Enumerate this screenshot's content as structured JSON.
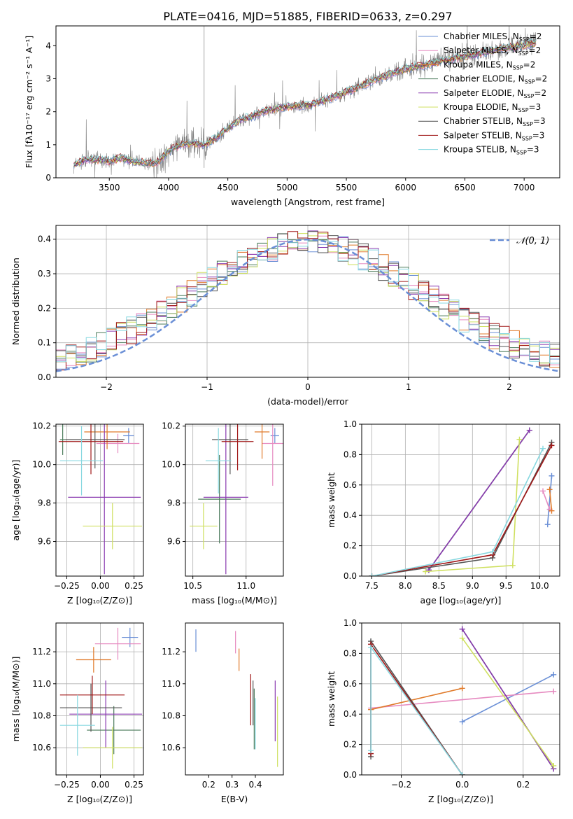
{
  "page_title": "PLATE=0416, MJD=51885, FIBERID=0633, z=0.297",
  "colors": {
    "chabrier_miles": "#6a8fd6",
    "salpeter_miles": "#e68ac0",
    "kroupa_miles": "#e07a2a",
    "chabrier_elodie": "#4a7a5a",
    "salpeter_elodie": "#8a3ab0",
    "kroupa_elodie": "#cfe060",
    "chabrier_stelib": "#555555",
    "salpeter_stelib": "#a01818",
    "kroupa_stelib": "#88d8e0",
    "data_gray": "#808080",
    "normal_curve": "#6a8fd6"
  },
  "chart_data": [
    {
      "id": "spectrum",
      "type": "line",
      "title": "",
      "xlabel": "wavelength [Angstrom, rest frame]",
      "ylabel": "Flux [fλ10⁻¹⁷ erg cm⁻² s⁻¹ A⁻¹]",
      "xlim": [
        3050,
        7300
      ],
      "ylim": [
        0,
        4.6
      ],
      "xticks": [
        3500,
        4000,
        4500,
        5000,
        5500,
        6000,
        6500,
        7000
      ],
      "yticks": [
        0,
        1,
        2,
        3,
        4
      ],
      "grid": false,
      "legend_position": "top-right",
      "legend": [
        {
          "label": "Chabrier MILES, N",
          "sub": "SSP",
          "suffix": "=2",
          "color": "#6a8fd6"
        },
        {
          "label": "Salpeter MILES, N",
          "sub": "SSP",
          "suffix": "=2",
          "color": "#e68ac0"
        },
        {
          "label": "Kroupa MILES, N",
          "sub": "SSP",
          "suffix": "=2",
          "color": "#e07a2a"
        },
        {
          "label": "Chabrier ELODIE, N",
          "sub": "SSP",
          "suffix": "=2",
          "color": "#4a7a5a"
        },
        {
          "label": "Salpeter ELODIE, N",
          "sub": "SSP",
          "suffix": "=2",
          "color": "#8a3ab0"
        },
        {
          "label": "Kroupa ELODIE, N",
          "sub": "SSP",
          "suffix": "=3",
          "color": "#cfe060"
        },
        {
          "label": "Chabrier STELIB, N",
          "sub": "SSP",
          "suffix": "=3",
          "color": "#555555"
        },
        {
          "label": "Salpeter STELIB, N",
          "sub": "SSP",
          "suffix": "=3",
          "color": "#a01818"
        },
        {
          "label": "Kroupa STELIB, N",
          "sub": "SSP",
          "suffix": "=3",
          "color": "#88d8e0"
        }
      ],
      "continuum": {
        "x": [
          3200,
          3300,
          3400,
          3500,
          3600,
          3700,
          3800,
          3900,
          4000,
          4100,
          4200,
          4300,
          4400,
          4500,
          4600,
          4700,
          4800,
          4900,
          5000,
          5200,
          5400,
          5600,
          5800,
          6000,
          6200,
          6400,
          6600,
          6800,
          7000,
          7100
        ],
        "y": [
          0.4,
          0.55,
          0.55,
          0.5,
          0.6,
          0.5,
          0.45,
          0.45,
          0.8,
          1.0,
          1.05,
          1.0,
          1.2,
          1.5,
          1.75,
          1.85,
          2.0,
          2.1,
          2.15,
          2.2,
          2.45,
          2.75,
          3.05,
          3.3,
          3.45,
          3.6,
          3.75,
          3.9,
          4.0,
          4.1
        ]
      }
    },
    {
      "id": "residuals",
      "type": "line",
      "xlabel": "(data-model)/error",
      "ylabel": "Normed distribution",
      "xlim": [
        -2.5,
        2.5
      ],
      "ylim": [
        0,
        0.44
      ],
      "xticks": [
        -2,
        -1,
        0,
        1,
        2
      ],
      "yticks": [
        0.0,
        0.1,
        0.2,
        0.3,
        0.4
      ],
      "grid": true,
      "legend_position": "top-right",
      "legend": [
        {
          "label": "𝒩(0, 1)",
          "color": "#6a8fd6"
        }
      ],
      "curve": {
        "type": "normal",
        "mean": 0,
        "sigma": 1
      }
    },
    {
      "id": "age_vs_Z",
      "type": "scatter",
      "xlabel": "Z [log₁₀(Z/Z⊙)]",
      "ylabel": "age  [log₁₀(age/yr)]",
      "xlim": [
        -0.33,
        0.32
      ],
      "ylim": [
        9.42,
        10.21
      ],
      "xticks": [
        -0.25,
        0.0,
        0.25
      ],
      "yticks": [
        9.6,
        9.8,
        10.0,
        10.2
      ],
      "grid": true,
      "points": [
        {
          "x": 0.21,
          "xerr": 0.04,
          "y": 10.15,
          "yerr": 0.04,
          "color": "#6a8fd6"
        },
        {
          "x": 0.13,
          "xerr": 0.16,
          "y": 10.11,
          "yerr": 0.05,
          "color": "#e68ac0"
        },
        {
          "x": 0.05,
          "xerr": 0.17,
          "y": 10.17,
          "yerr": 0.09,
          "color": "#e07a2a"
        },
        {
          "x": -0.28,
          "xerr": 0.02,
          "y": 10.13,
          "yerr": 0.08,
          "color": "#4a7a5a"
        },
        {
          "x": 0.03,
          "xerr": 0.27,
          "y": 9.83,
          "yerr": 0.4,
          "color": "#8a3ab0"
        },
        {
          "x": 0.09,
          "xerr": 0.22,
          "y": 9.68,
          "yerr": 0.12,
          "color": "#cfe060"
        },
        {
          "x": -0.04,
          "xerr": 0.22,
          "y": 10.13,
          "yerr": 0.15,
          "color": "#555555"
        },
        {
          "x": -0.07,
          "xerr": 0.24,
          "y": 10.12,
          "yerr": 0.17,
          "color": "#a01818"
        },
        {
          "x": -0.14,
          "xerr": 0.16,
          "y": 10.02,
          "yerr": 0.18,
          "color": "#88d8e0"
        }
      ]
    },
    {
      "id": "age_vs_mass",
      "type": "scatter",
      "xlabel": "mass [log₁₀(M/M⊙)]",
      "ylabel": "",
      "xlim": [
        10.43,
        11.35
      ],
      "ylim": [
        9.42,
        10.21
      ],
      "xticks": [
        10.5,
        11.0
      ],
      "yticks": [
        9.6,
        9.8,
        10.0,
        10.2
      ],
      "grid": true,
      "points": [
        {
          "x": 11.27,
          "xerr": 0.04,
          "y": 10.15,
          "yerr": 0.04,
          "color": "#6a8fd6"
        },
        {
          "x": 11.25,
          "xerr": 0.1,
          "y": 10.11,
          "yerr": 0.22,
          "color": "#e68ac0"
        },
        {
          "x": 11.15,
          "xerr": 0.07,
          "y": 10.17,
          "yerr": 0.14,
          "color": "#e07a2a"
        },
        {
          "x": 10.75,
          "xerr": 0.2,
          "y": 9.82,
          "yerr": 0.23,
          "color": "#4a7a5a"
        },
        {
          "x": 10.81,
          "xerr": 0.21,
          "y": 9.83,
          "yerr": 0.4,
          "color": "#8a3ab0"
        },
        {
          "x": 10.6,
          "xerr": 0.13,
          "y": 9.68,
          "yerr": 0.12,
          "color": "#cfe060"
        },
        {
          "x": 10.85,
          "xerr": 0.17,
          "y": 10.13,
          "yerr": 0.18,
          "color": "#555555"
        },
        {
          "x": 10.92,
          "xerr": 0.15,
          "y": 10.12,
          "yerr": 0.15,
          "color": "#a01818"
        },
        {
          "x": 10.74,
          "xerr": 0.12,
          "y": 10.02,
          "yerr": 0.17,
          "color": "#88d8e0"
        }
      ]
    },
    {
      "id": "weight_vs_age",
      "type": "line",
      "xlabel": "age  [log₁₀(age/yr)]",
      "ylabel": "mass weight",
      "xlim": [
        7.35,
        10.3
      ],
      "ylim": [
        0,
        1.0
      ],
      "xticks": [
        7.5,
        8.0,
        8.5,
        9.0,
        9.5,
        10.0
      ],
      "yticks": [
        0.0,
        0.2,
        0.4,
        0.6,
        0.8,
        1.0
      ],
      "grid": true,
      "series": [
        {
          "color": "#6a8fd6",
          "x": [
            10.12,
            10.18
          ],
          "y": [
            0.34,
            0.66
          ]
        },
        {
          "color": "#e68ac0",
          "x": [
            10.05,
            10.15
          ],
          "y": [
            0.56,
            0.44
          ]
        },
        {
          "color": "#e07a2a",
          "x": [
            10.15,
            10.18
          ],
          "y": [
            0.57,
            0.43
          ]
        },
        {
          "color": "#4a7a5a",
          "x": [
            8.35,
            9.85
          ],
          "y": [
            0.04,
            0.96
          ]
        },
        {
          "color": "#8a3ab0",
          "x": [
            8.35,
            9.85
          ],
          "y": [
            0.04,
            0.96
          ]
        },
        {
          "color": "#cfe060",
          "x": [
            8.3,
            9.6,
            9.7
          ],
          "y": [
            0.03,
            0.07,
            0.9
          ]
        },
        {
          "color": "#555555",
          "x": [
            7.5,
            9.3,
            10.18
          ],
          "y": [
            0.0,
            0.12,
            0.88
          ]
        },
        {
          "color": "#a01818",
          "x": [
            7.5,
            9.3,
            10.18
          ],
          "y": [
            0.0,
            0.14,
            0.86
          ]
        },
        {
          "color": "#88d8e0",
          "x": [
            7.5,
            9.3,
            10.05
          ],
          "y": [
            0.0,
            0.16,
            0.84
          ]
        }
      ]
    },
    {
      "id": "mass_vs_Z",
      "type": "scatter",
      "xlabel": "Z [log₁₀(Z/Z⊙)]",
      "ylabel": "mass [log₁₀(M/M⊙)]",
      "xlim": [
        -0.33,
        0.32
      ],
      "ylim": [
        10.43,
        11.38
      ],
      "xticks": [
        -0.25,
        0.0,
        0.25
      ],
      "yticks": [
        10.6,
        10.8,
        11.0,
        11.2
      ],
      "grid": true,
      "points": [
        {
          "x": 0.22,
          "xerr": 0.06,
          "y": 11.29,
          "yerr": 0.06,
          "color": "#6a8fd6"
        },
        {
          "x": 0.13,
          "xerr": 0.17,
          "y": 11.25,
          "yerr": 0.1,
          "color": "#e68ac0"
        },
        {
          "x": -0.05,
          "xerr": 0.13,
          "y": 11.15,
          "yerr": 0.08,
          "color": "#e07a2a"
        },
        {
          "x": 0.1,
          "xerr": 0.2,
          "y": 10.71,
          "yerr": 0.15,
          "color": "#4a7a5a"
        },
        {
          "x": 0.04,
          "xerr": 0.27,
          "y": 10.81,
          "yerr": 0.21,
          "color": "#8a3ab0"
        },
        {
          "x": 0.09,
          "xerr": 0.22,
          "y": 10.6,
          "yerr": 0.13,
          "color": "#cfe060"
        },
        {
          "x": -0.07,
          "xerr": 0.23,
          "y": 10.85,
          "yerr": 0.15,
          "color": "#555555"
        },
        {
          "x": -0.06,
          "xerr": 0.24,
          "y": 10.93,
          "yerr": 0.12,
          "color": "#a01818"
        },
        {
          "x": -0.17,
          "xerr": 0.13,
          "y": 10.74,
          "yerr": 0.19,
          "color": "#88d8e0"
        }
      ]
    },
    {
      "id": "mass_vs_ebv",
      "type": "scatter",
      "xlabel": "E(B-V)",
      "ylabel": "",
      "xlim": [
        0.1,
        0.52
      ],
      "ylim": [
        10.43,
        11.38
      ],
      "xticks": [
        0.2,
        0.3,
        0.4
      ],
      "yticks": [
        10.6,
        10.8,
        11.0,
        11.2
      ],
      "grid": false,
      "points": [
        {
          "x": 0.145,
          "y": 11.27,
          "yerr": 0.07,
          "color": "#6a8fd6"
        },
        {
          "x": 0.315,
          "y": 11.26,
          "yerr": 0.07,
          "color": "#e68ac0"
        },
        {
          "x": 0.33,
          "y": 11.15,
          "yerr": 0.07,
          "color": "#e07a2a"
        },
        {
          "x": 0.395,
          "y": 10.78,
          "yerr": 0.19,
          "color": "#4a7a5a"
        },
        {
          "x": 0.485,
          "y": 10.83,
          "yerr": 0.19,
          "color": "#8a3ab0"
        },
        {
          "x": 0.495,
          "y": 10.7,
          "yerr": 0.22,
          "color": "#cfe060"
        },
        {
          "x": 0.39,
          "y": 10.88,
          "yerr": 0.14,
          "color": "#555555"
        },
        {
          "x": 0.38,
          "y": 10.9,
          "yerr": 0.16,
          "color": "#a01818"
        },
        {
          "x": 0.4,
          "y": 10.75,
          "yerr": 0.16,
          "color": "#88d8e0"
        }
      ]
    },
    {
      "id": "weight_vs_Z",
      "type": "line",
      "xlabel": "Z [log₁₀(Z/Z⊙)]",
      "ylabel": "mass weight",
      "xlim": [
        -0.33,
        0.32
      ],
      "ylim": [
        0,
        1.0
      ],
      "xticks": [
        -0.2,
        0.0,
        0.2
      ],
      "yticks": [
        0.0,
        0.2,
        0.4,
        0.6,
        0.8,
        1.0
      ],
      "grid": true,
      "series": [
        {
          "color": "#6a8fd6",
          "x": [
            0.0,
            0.3
          ],
          "y": [
            0.35,
            0.66
          ]
        },
        {
          "color": "#e68ac0",
          "x": [
            -0.3,
            0.3
          ],
          "y": [
            0.44,
            0.55
          ]
        },
        {
          "color": "#e07a2a",
          "x": [
            -0.3,
            0.0
          ],
          "y": [
            0.43,
            0.57
          ]
        },
        {
          "color": "#4a7a5a",
          "x": [
            0.0,
            0.3
          ],
          "y": [
            0.96,
            0.04
          ]
        },
        {
          "color": "#8a3ab0",
          "x": [
            0.0,
            0.3
          ],
          "y": [
            0.96,
            0.04
          ]
        },
        {
          "color": "#cfe060",
          "x": [
            0.0,
            0.3
          ],
          "y": [
            0.9,
            0.06
          ]
        },
        {
          "color": "#555555",
          "x": [
            -0.3,
            -0.3,
            0.0
          ],
          "y": [
            0.12,
            0.88,
            0.0
          ]
        },
        {
          "color": "#a01818",
          "x": [
            -0.3,
            -0.3,
            0.0
          ],
          "y": [
            0.14,
            0.86,
            0.0
          ]
        },
        {
          "color": "#88d8e0",
          "x": [
            -0.3,
            -0.3,
            0.0
          ],
          "y": [
            0.16,
            0.84,
            0.0
          ]
        }
      ]
    }
  ]
}
